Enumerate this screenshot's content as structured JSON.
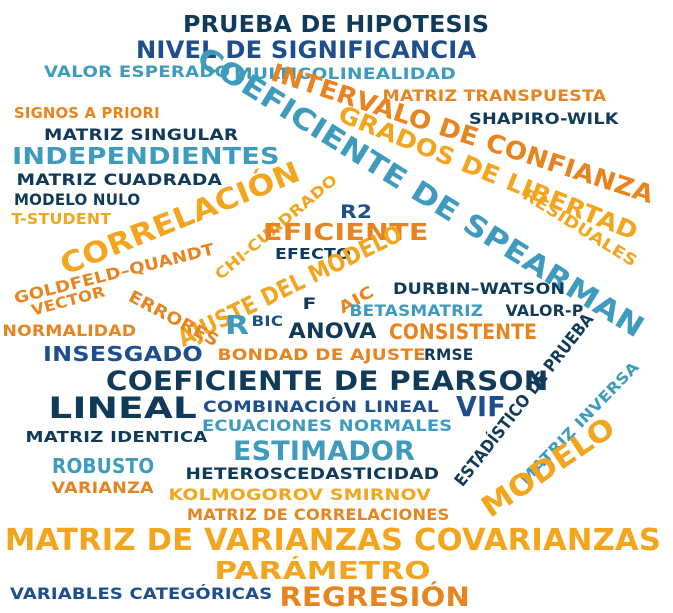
{
  "palette": {
    "navy": "#0f3a5a",
    "blue": "#1e4e8c",
    "teal": "#3f9bbd",
    "orange": "#e8841f",
    "gold": "#f2a51d"
  },
  "words": [
    {
      "key": "prueba-de-hipotesis",
      "text": "PRUEBA DE HIPOTESIS"
    },
    {
      "key": "nivel-de-significancia",
      "text": "NIVEL DE SIGNIFICANCIA"
    },
    {
      "key": "valor-esperado",
      "text": "VALOR ESPERADO"
    },
    {
      "key": "multicolinealidad",
      "text": "MULTICOLINEALIDAD"
    },
    {
      "key": "intervalo-de-confianza",
      "text": "INTERVALO DE CONFIANZA"
    },
    {
      "key": "matriz-transpuesta",
      "text": "MATRIZ TRANSPUESTA"
    },
    {
      "key": "signos-a-priori",
      "text": "SIGNOS A PRIORI"
    },
    {
      "key": "coeficiente-de-spearman",
      "text": "COEFICIENTE DE SPEARMAN"
    },
    {
      "key": "shapiro-wilk",
      "text": "SHAPIRO-WILK"
    },
    {
      "key": "matriz-singular",
      "text": "MATRIZ SINGULAR"
    },
    {
      "key": "grados-de-libertad",
      "text": "GRADOS DE LIBERTAD"
    },
    {
      "key": "independientes",
      "text": "INDEPENDIENTES"
    },
    {
      "key": "matriz-cuadrada",
      "text": "MATRIZ CUADRADA"
    },
    {
      "key": "modelo-nulo",
      "text": "MODELO NULO"
    },
    {
      "key": "correlacion",
      "text": "CORRELACIÓN"
    },
    {
      "key": "t-student",
      "text": "T-STUDENT"
    },
    {
      "key": "chi-cuadrado",
      "text": "CHI-CUADRADO"
    },
    {
      "key": "r2",
      "text": "R2"
    },
    {
      "key": "residuales",
      "text": "RESIDUALES"
    },
    {
      "key": "eficiente",
      "text": "EFICIENTE"
    },
    {
      "key": "efecto",
      "text": "EFECTO"
    },
    {
      "key": "goldfeld-quandt",
      "text": "GOLDFELD–QUANDT"
    },
    {
      "key": "ajuste-del-modelo",
      "text": "AJUSTE DEL MODELO"
    },
    {
      "key": "vector",
      "text": "VECTOR"
    },
    {
      "key": "durbin-watson",
      "text": "DURBIN–WATSON"
    },
    {
      "key": "errores",
      "text": "ERRORES"
    },
    {
      "key": "aic",
      "text": "AIC"
    },
    {
      "key": "f",
      "text": "F"
    },
    {
      "key": "betasmatriz",
      "text": "BETASMATRIZ"
    },
    {
      "key": "valor-p",
      "text": "VALOR-P"
    },
    {
      "key": "r",
      "text": "R"
    },
    {
      "key": "bic",
      "text": "BIC"
    },
    {
      "key": "normalidad",
      "text": "NORMALIDAD"
    },
    {
      "key": "anova",
      "text": "ANOVA"
    },
    {
      "key": "consistente",
      "text": "CONSISTENTE"
    },
    {
      "key": "estadistico-de-prueba",
      "text": "ESTADÍSTICO DE PRUEBA"
    },
    {
      "key": "insesgado",
      "text": "INSESGADO"
    },
    {
      "key": "bondad-de-ajuste",
      "text": "BONDAD DE AJUSTE"
    },
    {
      "key": "rmse",
      "text": "RMSE"
    },
    {
      "key": "coeficiente-de-pearson",
      "text": "COEFICIENTE DE PEARSON"
    },
    {
      "key": "matriz-inversa",
      "text": "MATRIZ INVERSA"
    },
    {
      "key": "lineal",
      "text": "LINEAL"
    },
    {
      "key": "combinacion-lineal",
      "text": "COMBINACIÓN LINEAL"
    },
    {
      "key": "vif",
      "text": "VIF"
    },
    {
      "key": "ecuaciones-normales",
      "text": "ECUACIONES NORMALES"
    },
    {
      "key": "matriz-identica",
      "text": "MATRIZ IDENTICA"
    },
    {
      "key": "estimador",
      "text": "ESTIMADOR"
    },
    {
      "key": "modelo",
      "text": "MODELO"
    },
    {
      "key": "robusto",
      "text": "ROBUSTO"
    },
    {
      "key": "heteroscedasticidad",
      "text": "HETEROSCEDASTICIDAD"
    },
    {
      "key": "varianza",
      "text": "VARIANZA"
    },
    {
      "key": "kolmogorov-smirnov",
      "text": "KOLMOGOROV SMIRNOV"
    },
    {
      "key": "matriz-de-correlaciones",
      "text": "MATRIZ DE CORRELACIONES"
    },
    {
      "key": "matriz-de-varianzas-covarianzas",
      "text": "MATRIZ DE VARIANZAS COVARIANZAS"
    },
    {
      "key": "parametro",
      "text": "PARÁMETRO"
    },
    {
      "key": "variables-categoricas",
      "text": "VARIABLES CATEGÓRICAS"
    },
    {
      "key": "regresion",
      "text": "REGRESIÓN"
    }
  ]
}
